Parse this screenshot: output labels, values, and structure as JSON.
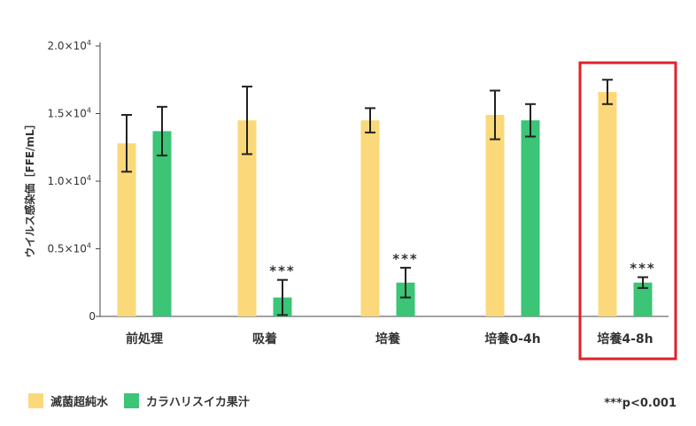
{
  "colors": {
    "water": "#fbd97a",
    "extract": "#3cc477",
    "highlight": "#e0202a",
    "axis": "#444444",
    "errorbar": "#222222"
  },
  "legend": {
    "water_label": "滅菌超純水",
    "extract_label": "カラハリスイカ果汁"
  },
  "note": "***p<0.001",
  "chart_data": {
    "type": "bar",
    "title": "",
    "xlabel": "",
    "ylabel": "ウイルス感染価［FFE/mL］",
    "ylim": [
      0,
      20000
    ],
    "yticks": [
      {
        "value": 0,
        "base": "0",
        "exp": ""
      },
      {
        "value": 5000,
        "base": "0.5×10",
        "exp": "4"
      },
      {
        "value": 10000,
        "base": "1.0×10",
        "exp": "4"
      },
      {
        "value": 15000,
        "base": "1.5×10",
        "exp": "4"
      },
      {
        "value": 20000,
        "base": "2.0×10",
        "exp": "4"
      }
    ],
    "categories": [
      "前処理",
      "吸着",
      "培養",
      "培養0-4h",
      "培養4-8h"
    ],
    "series": [
      {
        "name": "滅菌超純水",
        "values": [
          12800,
          14500,
          14500,
          14900,
          16600
        ],
        "error": [
          2100,
          2500,
          900,
          1800,
          900
        ],
        "significance": [
          "",
          "",
          "",
          "",
          ""
        ]
      },
      {
        "name": "カラハリスイカ果汁",
        "values": [
          13700,
          1400,
          2500,
          14500,
          2500
        ],
        "error": [
          1800,
          1300,
          1100,
          1200,
          400
        ],
        "significance": [
          "",
          "***",
          "***",
          "",
          "***"
        ]
      }
    ],
    "highlighted_category": "培養4-8h",
    "grid": false
  }
}
